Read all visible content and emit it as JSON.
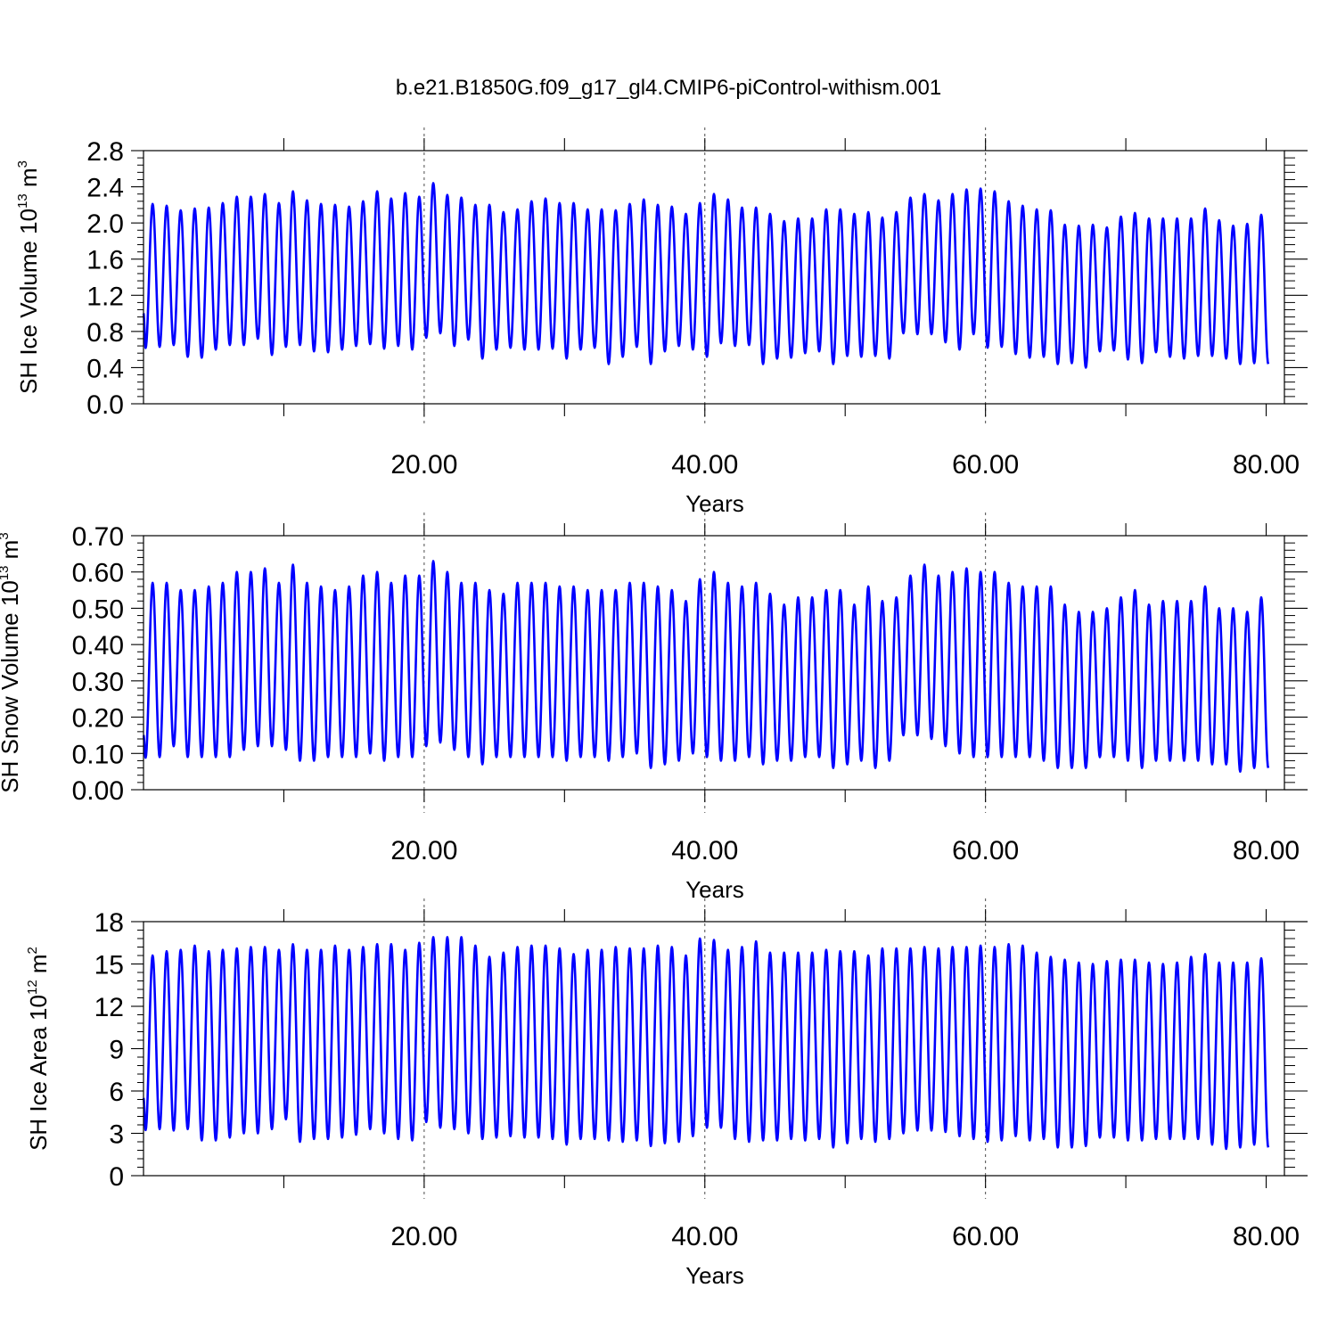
{
  "figure": {
    "title": "b.e21.B1850G.f09_g17_gl4.CMIP6-piControl-withism.001"
  },
  "colors": {
    "series": "#0000ff",
    "axes": "#000000",
    "grid": "#000000"
  },
  "chart_data": [
    {
      "type": "line",
      "xlabel": "Years",
      "ylabel_main": "SH Ice Volume 10",
      "ylabel_exp": "13",
      "ylabel_unit": " m",
      "ylabel_unit_exp": "3",
      "xlim": [
        0,
        81.3
      ],
      "ylim": [
        0,
        2.8
      ],
      "x_ticks": [
        20,
        40,
        60,
        80
      ],
      "x_tick_labels": [
        "20.00",
        "40.00",
        "60.00",
        "80.00"
      ],
      "y_ticks": [
        0,
        0.4,
        0.8,
        1.2,
        1.6,
        2.0,
        2.4,
        2.8
      ],
      "y_tick_labels": [
        "0.0",
        "0.4",
        "0.8",
        "1.2",
        "1.6",
        "2.0",
        "2.4",
        "2.8"
      ],
      "grid_x": [
        20,
        40,
        60
      ],
      "series": [
        {
          "start": 1.0,
          "peaks": [
            2.21,
            2.19,
            2.14,
            2.16,
            2.17,
            2.22,
            2.29,
            2.29,
            2.32,
            2.22,
            2.35,
            2.25,
            2.21,
            2.2,
            2.18,
            2.24,
            2.35,
            2.27,
            2.33,
            2.29,
            2.44,
            2.31,
            2.28,
            2.2,
            2.2,
            2.12,
            2.15,
            2.24,
            2.27,
            2.22,
            2.22,
            2.15,
            2.15,
            2.14,
            2.21,
            2.26,
            2.2,
            2.18,
            2.1,
            2.22,
            2.32,
            2.26,
            2.17,
            2.17,
            2.1,
            2.02,
            2.05,
            2.05,
            2.15,
            2.15,
            2.1,
            2.12,
            2.06,
            2.12,
            2.28,
            2.32,
            2.25,
            2.32,
            2.37,
            2.38,
            2.35,
            2.24,
            2.19,
            2.15,
            2.14,
            1.98,
            1.97,
            1.98,
            1.95,
            2.07,
            2.11,
            2.05,
            2.05,
            2.05,
            2.05,
            2.16,
            2.03,
            1.97,
            1.99,
            2.09
          ],
          "troughs": [
            0.63,
            0.65,
            0.52,
            0.51,
            0.6,
            0.65,
            0.65,
            0.72,
            0.54,
            0.63,
            0.65,
            0.58,
            0.57,
            0.6,
            0.64,
            0.66,
            0.61,
            0.64,
            0.6,
            0.73,
            0.78,
            0.64,
            0.71,
            0.5,
            0.6,
            0.62,
            0.6,
            0.6,
            0.61,
            0.5,
            0.6,
            0.62,
            0.44,
            0.52,
            0.63,
            0.44,
            0.58,
            0.64,
            0.6,
            0.52,
            0.67,
            0.64,
            0.65,
            0.44,
            0.5,
            0.51,
            0.56,
            0.58,
            0.44,
            0.53,
            0.52,
            0.53,
            0.5,
            0.78,
            0.77,
            0.77,
            0.68,
            0.6,
            0.77,
            0.62,
            0.63,
            0.55,
            0.51,
            0.52,
            0.44,
            0.45,
            0.4,
            0.58,
            0.59,
            0.49,
            0.45,
            0.57,
            0.52,
            0.5,
            0.53,
            0.53,
            0.5,
            0.44,
            0.45,
            0.44
          ]
        }
      ]
    },
    {
      "type": "line",
      "xlabel": "Years",
      "ylabel_main": "SH Snow Volume 10",
      "ylabel_exp": "13",
      "ylabel_unit": " m",
      "ylabel_unit_exp": "3",
      "xlim": [
        0,
        81.3
      ],
      "ylim": [
        0,
        0.7
      ],
      "x_ticks": [
        20,
        40,
        60,
        80
      ],
      "x_tick_labels": [
        "20.00",
        "40.00",
        "60.00",
        "80.00"
      ],
      "y_ticks": [
        0,
        0.1,
        0.2,
        0.3,
        0.4,
        0.5,
        0.6,
        0.7
      ],
      "y_tick_labels": [
        "0.00",
        "0.10",
        "0.20",
        "0.30",
        "0.40",
        "0.50",
        "0.60",
        "0.70"
      ],
      "grid_x": [
        20,
        40,
        60
      ],
      "series": [
        {
          "start": 0.15,
          "peaks": [
            0.57,
            0.57,
            0.55,
            0.55,
            0.56,
            0.57,
            0.6,
            0.6,
            0.61,
            0.57,
            0.62,
            0.57,
            0.56,
            0.55,
            0.56,
            0.59,
            0.6,
            0.57,
            0.59,
            0.59,
            0.63,
            0.6,
            0.57,
            0.57,
            0.55,
            0.54,
            0.57,
            0.57,
            0.57,
            0.56,
            0.56,
            0.55,
            0.55,
            0.55,
            0.57,
            0.57,
            0.56,
            0.55,
            0.52,
            0.58,
            0.6,
            0.57,
            0.56,
            0.57,
            0.54,
            0.51,
            0.53,
            0.53,
            0.55,
            0.55,
            0.51,
            0.56,
            0.52,
            0.53,
            0.59,
            0.62,
            0.59,
            0.6,
            0.61,
            0.6,
            0.6,
            0.57,
            0.56,
            0.56,
            0.56,
            0.51,
            0.49,
            0.49,
            0.5,
            0.53,
            0.55,
            0.51,
            0.52,
            0.52,
            0.52,
            0.56,
            0.5,
            0.5,
            0.49,
            0.53
          ],
          "troughs": [
            0.09,
            0.12,
            0.09,
            0.09,
            0.09,
            0.09,
            0.11,
            0.12,
            0.12,
            0.11,
            0.08,
            0.08,
            0.09,
            0.09,
            0.09,
            0.1,
            0.08,
            0.09,
            0.09,
            0.12,
            0.13,
            0.11,
            0.09,
            0.07,
            0.09,
            0.09,
            0.09,
            0.09,
            0.09,
            0.08,
            0.09,
            0.09,
            0.08,
            0.09,
            0.1,
            0.06,
            0.07,
            0.08,
            0.1,
            0.09,
            0.08,
            0.08,
            0.09,
            0.07,
            0.08,
            0.08,
            0.09,
            0.09,
            0.06,
            0.07,
            0.08,
            0.06,
            0.08,
            0.15,
            0.15,
            0.14,
            0.12,
            0.1,
            0.09,
            0.09,
            0.09,
            0.09,
            0.09,
            0.08,
            0.06,
            0.06,
            0.06,
            0.09,
            0.09,
            0.08,
            0.06,
            0.08,
            0.08,
            0.08,
            0.08,
            0.07,
            0.07,
            0.05,
            0.06,
            0.06
          ]
        }
      ]
    },
    {
      "type": "line",
      "xlabel": "Years",
      "ylabel_main": "SH Ice Area 10",
      "ylabel_exp": "12",
      "ylabel_unit": " m",
      "ylabel_unit_exp": "2",
      "xlim": [
        0,
        81.3
      ],
      "ylim": [
        0,
        18
      ],
      "x_ticks": [
        20,
        40,
        60,
        80
      ],
      "x_tick_labels": [
        "20.00",
        "40.00",
        "60.00",
        "80.00"
      ],
      "y_ticks": [
        0,
        3,
        6,
        9,
        12,
        15,
        18
      ],
      "y_tick_labels": [
        "0",
        "3",
        "6",
        "9",
        "12",
        "15",
        "18"
      ],
      "grid_x": [
        20,
        40,
        60
      ],
      "series": [
        {
          "start": 5.5,
          "peaks": [
            15.6,
            15.9,
            16.0,
            16.3,
            15.9,
            16.0,
            16.1,
            16.2,
            16.2,
            16.0,
            16.4,
            16.0,
            16.0,
            16.3,
            16.0,
            16.2,
            16.4,
            16.4,
            16.0,
            16.5,
            16.9,
            16.9,
            16.9,
            16.3,
            15.5,
            15.8,
            16.2,
            16.3,
            16.3,
            16.1,
            15.7,
            16.0,
            16.0,
            16.2,
            16.1,
            16.1,
            16.3,
            16.2,
            15.6,
            16.8,
            16.7,
            16.0,
            16.2,
            16.6,
            15.8,
            15.8,
            15.8,
            15.8,
            16.0,
            15.9,
            15.9,
            15.6,
            16.1,
            16.1,
            16.1,
            16.2,
            16.1,
            16.2,
            16.2,
            16.3,
            16.2,
            16.4,
            16.3,
            15.8,
            15.5,
            15.3,
            15.1,
            15.0,
            15.2,
            15.3,
            15.3,
            15.1,
            15.0,
            15.1,
            15.5,
            15.7,
            15.1,
            15.1,
            15.1,
            15.4
          ],
          "troughs": [
            3.3,
            3.2,
            3.3,
            2.5,
            2.5,
            2.7,
            3.0,
            3.0,
            3.3,
            4.0,
            2.4,
            2.6,
            2.6,
            2.7,
            2.9,
            3.3,
            3.0,
            2.6,
            2.5,
            3.8,
            3.4,
            3.3,
            3.0,
            2.6,
            2.7,
            2.8,
            2.7,
            2.7,
            2.6,
            2.2,
            2.6,
            2.6,
            2.5,
            2.4,
            2.5,
            2.1,
            2.3,
            2.4,
            2.8,
            3.4,
            3.4,
            2.6,
            2.4,
            2.5,
            2.5,
            2.6,
            2.5,
            2.6,
            2.0,
            2.3,
            2.6,
            2.4,
            2.6,
            3.0,
            3.2,
            3.2,
            3.1,
            2.8,
            2.6,
            2.4,
            2.5,
            2.8,
            2.5,
            2.6,
            2.0,
            2.0,
            2.1,
            2.7,
            2.7,
            2.5,
            2.5,
            2.6,
            2.6,
            2.6,
            2.6,
            2.2,
            1.9,
            2.0,
            2.2,
            2.0
          ]
        }
      ]
    }
  ]
}
